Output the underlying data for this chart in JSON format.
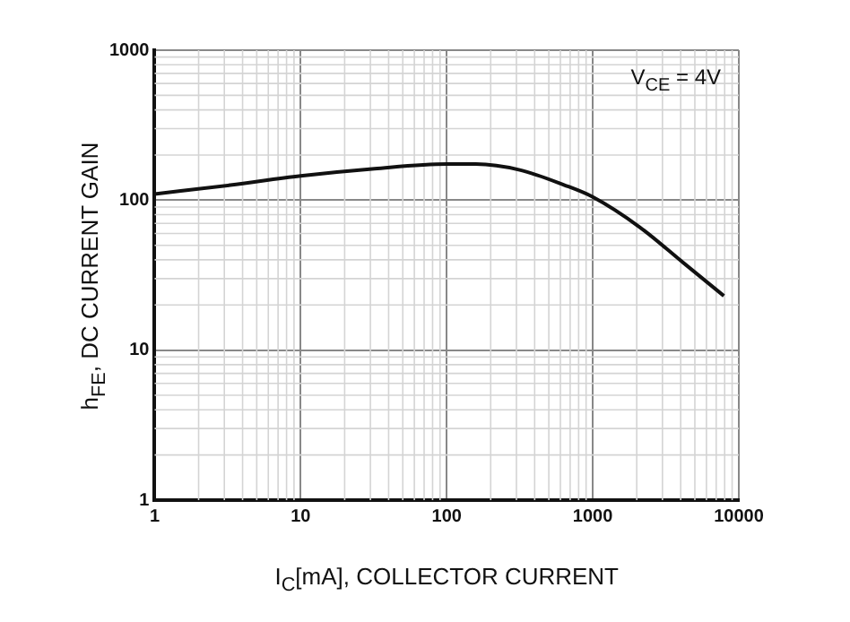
{
  "chart_data": {
    "type": "line",
    "xlabel": "I$_{C}$[mA], COLLECTOR CURRENT",
    "ylabel": "h$_{FE}$, DC CURRENT GAIN",
    "annotations": [
      "V$_{CE}$ = 4V"
    ],
    "log": "xy",
    "grid": true,
    "legend": false,
    "marker": "none",
    "line_style": "solid",
    "xlim": [
      1,
      10000
    ],
    "xticks": [
      1,
      10,
      100,
      1000,
      10000
    ],
    "ylim": [
      1,
      1000
    ],
    "yticks": [
      1,
      10,
      100,
      1000
    ],
    "x": [
      1,
      3.3,
      10,
      32,
      100,
      158,
      316,
      640,
      1000,
      2100,
      4200,
      7900
    ],
    "series": [
      {
        "color": "#111111",
        "values": [
          110,
          126,
          145,
          162,
          174,
          174,
          159,
          126,
          105,
          66,
          38,
          23
        ]
      }
    ]
  }
}
